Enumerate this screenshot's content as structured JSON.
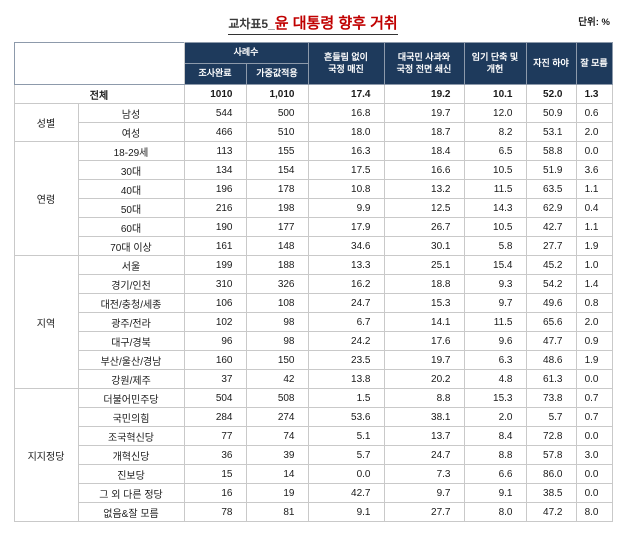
{
  "title": {
    "prefix": "교차표5_",
    "main": "윤 대통령 향후 거취"
  },
  "unit_label": "단위: %",
  "colors": {
    "header_bg": "#1e3a5c",
    "title_accent": "#c00000"
  },
  "table": {
    "header": {
      "sample_group": "사례수",
      "sample_cols": [
        "조사완료",
        "가중값적용"
      ],
      "response_cols": [
        "흔들림 없이\n국정 매진",
        "대국민 사과와\n국정 전면 쇄신",
        "임기 단축 및\n개헌",
        "자진 하야",
        "잘 모름"
      ]
    },
    "total_row": {
      "label": "전체",
      "values": [
        "1010",
        "1,010",
        "17.4",
        "19.2",
        "10.1",
        "52.0",
        "1.3"
      ]
    },
    "groups": [
      {
        "name": "성별",
        "rows": [
          {
            "label": "남성",
            "values": [
              "544",
              "500",
              "16.8",
              "19.7",
              "12.0",
              "50.9",
              "0.6"
            ]
          },
          {
            "label": "여성",
            "values": [
              "466",
              "510",
              "18.0",
              "18.7",
              "8.2",
              "53.1",
              "2.0"
            ]
          }
        ]
      },
      {
        "name": "연령",
        "rows": [
          {
            "label": "18-29세",
            "values": [
              "113",
              "155",
              "16.3",
              "18.4",
              "6.5",
              "58.8",
              "0.0"
            ]
          },
          {
            "label": "30대",
            "values": [
              "134",
              "154",
              "17.5",
              "16.6",
              "10.5",
              "51.9",
              "3.6"
            ]
          },
          {
            "label": "40대",
            "values": [
              "196",
              "178",
              "10.8",
              "13.2",
              "11.5",
              "63.5",
              "1.1"
            ]
          },
          {
            "label": "50대",
            "values": [
              "216",
              "198",
              "9.9",
              "12.5",
              "14.3",
              "62.9",
              "0.4"
            ]
          },
          {
            "label": "60대",
            "values": [
              "190",
              "177",
              "17.9",
              "26.7",
              "10.5",
              "42.7",
              "1.1"
            ]
          },
          {
            "label": "70대 이상",
            "values": [
              "161",
              "148",
              "34.6",
              "30.1",
              "5.8",
              "27.7",
              "1.9"
            ]
          }
        ]
      },
      {
        "name": "지역",
        "rows": [
          {
            "label": "서울",
            "values": [
              "199",
              "188",
              "13.3",
              "25.1",
              "15.4",
              "45.2",
              "1.0"
            ]
          },
          {
            "label": "경기/인천",
            "values": [
              "310",
              "326",
              "16.2",
              "18.8",
              "9.3",
              "54.2",
              "1.4"
            ]
          },
          {
            "label": "대전/충청/세종",
            "values": [
              "106",
              "108",
              "24.7",
              "15.3",
              "9.7",
              "49.6",
              "0.8"
            ]
          },
          {
            "label": "광주/전라",
            "values": [
              "102",
              "98",
              "6.7",
              "14.1",
              "11.5",
              "65.6",
              "2.0"
            ]
          },
          {
            "label": "대구/경북",
            "values": [
              "96",
              "98",
              "24.2",
              "17.6",
              "9.6",
              "47.7",
              "0.9"
            ]
          },
          {
            "label": "부산/울산/경남",
            "values": [
              "160",
              "150",
              "23.5",
              "19.7",
              "6.3",
              "48.6",
              "1.9"
            ]
          },
          {
            "label": "강원/제주",
            "values": [
              "37",
              "42",
              "13.8",
              "20.2",
              "4.8",
              "61.3",
              "0.0"
            ]
          }
        ]
      },
      {
        "name": "지지정당",
        "rows": [
          {
            "label": "더불어민주당",
            "values": [
              "504",
              "508",
              "1.5",
              "8.8",
              "15.3",
              "73.8",
              "0.7"
            ]
          },
          {
            "label": "국민의힘",
            "values": [
              "284",
              "274",
              "53.6",
              "38.1",
              "2.0",
              "5.7",
              "0.7"
            ]
          },
          {
            "label": "조국혁신당",
            "values": [
              "77",
              "74",
              "5.1",
              "13.7",
              "8.4",
              "72.8",
              "0.0"
            ]
          },
          {
            "label": "개혁신당",
            "values": [
              "36",
              "39",
              "5.7",
              "24.7",
              "8.8",
              "57.8",
              "3.0"
            ]
          },
          {
            "label": "진보당",
            "values": [
              "15",
              "14",
              "0.0",
              "7.3",
              "6.6",
              "86.0",
              "0.0"
            ]
          },
          {
            "label": "그 외 다른 정당",
            "values": [
              "16",
              "19",
              "42.7",
              "9.7",
              "9.1",
              "38.5",
              "0.0"
            ]
          },
          {
            "label": "없음&잘 모름",
            "values": [
              "78",
              "81",
              "9.1",
              "27.7",
              "8.0",
              "47.2",
              "8.0"
            ]
          }
        ]
      }
    ]
  }
}
